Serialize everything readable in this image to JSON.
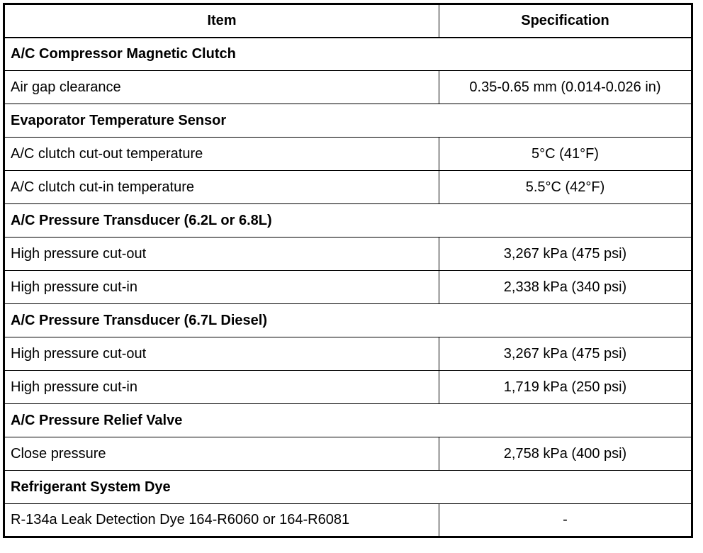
{
  "header": {
    "item": "Item",
    "specification": "Specification"
  },
  "rows": [
    {
      "type": "section",
      "item": "A/C Compressor Magnetic Clutch"
    },
    {
      "type": "row",
      "item": "Air gap clearance",
      "spec": "0.35-0.65 mm (0.014-0.026 in)"
    },
    {
      "type": "section",
      "item": "Evaporator Temperature Sensor"
    },
    {
      "type": "row",
      "item": "A/C clutch cut-out temperature",
      "spec": "5°C (41°F)"
    },
    {
      "type": "row",
      "item": "A/C clutch cut-in temperature",
      "spec": "5.5°C (42°F)"
    },
    {
      "type": "section",
      "item": "A/C Pressure Transducer (6.2L or 6.8L)"
    },
    {
      "type": "row",
      "item": "High pressure cut-out",
      "spec": "3,267 kPa (475 psi)"
    },
    {
      "type": "row",
      "item": "High pressure cut-in",
      "spec": "2,338 kPa (340 psi)"
    },
    {
      "type": "section",
      "item": "A/C Pressure Transducer (6.7L Diesel)"
    },
    {
      "type": "row",
      "item": "High pressure cut-out",
      "spec": "3,267 kPa (475 psi)"
    },
    {
      "type": "row",
      "item": "High pressure cut-in",
      "spec": "1,719 kPa (250 psi)"
    },
    {
      "type": "section",
      "item": "A/C Pressure Relief Valve"
    },
    {
      "type": "row",
      "item": "Close pressure",
      "spec": "2,758 kPa (400 psi)"
    },
    {
      "type": "section",
      "item": "Refrigerant System Dye"
    },
    {
      "type": "row",
      "item": "R-134a Leak Detection Dye 164-R6060 or 164-R6081",
      "spec": "-"
    }
  ]
}
